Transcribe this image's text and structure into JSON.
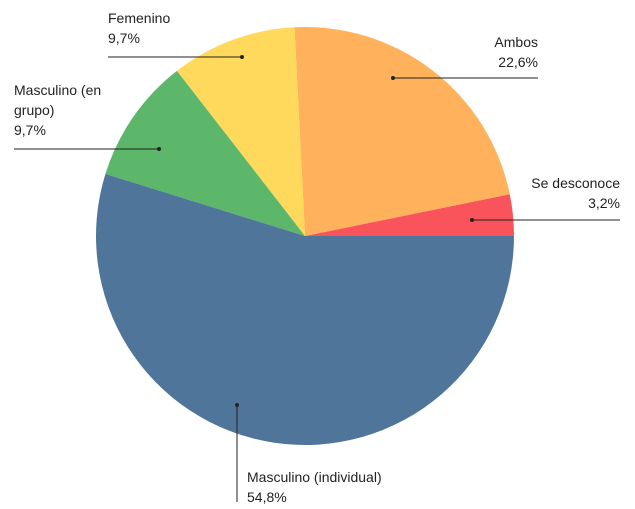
{
  "chart_data": {
    "type": "pie",
    "categories": [
      "Se desconoce",
      "Ambos",
      "Femenino",
      "Masculino (en grupo)",
      "Masculino (individual)"
    ],
    "values": [
      3.2,
      22.6,
      9.7,
      9.7,
      54.8
    ],
    "value_labels": [
      "3,2%",
      "22,6%",
      "9,7%",
      "9,7%",
      "54,8%"
    ],
    "colors": [
      "#f9545b",
      "#ffb25b",
      "#ffd95c",
      "#5cb76a",
      "#4f769a"
    ]
  }
}
